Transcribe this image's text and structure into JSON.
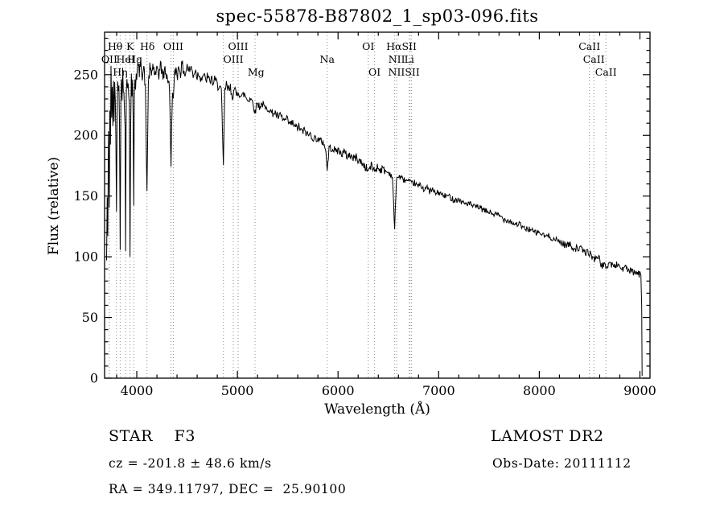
{
  "chart_data": {
    "type": "line",
    "title": "spec-55878-B87802_1_sp03-096.fits",
    "xlabel": "Wavelength (Å)",
    "ylabel": "Flux (relative)",
    "xlim": [
      3680,
      9100
    ],
    "ylim": [
      0,
      285
    ],
    "x_major_step": 1000,
    "x_minor_step": 200,
    "x_major_labels": [
      4000,
      5000,
      6000,
      7000,
      8000,
      9000
    ],
    "y_major_step": 50,
    "y_minor_step": 10,
    "y_major_labels": [
      0,
      50,
      100,
      150,
      200,
      250
    ],
    "grid": false,
    "legend": "none",
    "line_color": "#000000",
    "marker_color": "#8a8a8a",
    "noise": {
      "seed": 42,
      "sample_step": 6,
      "regions": [
        {
          "from": 3680,
          "to": 4000,
          "amp": 10
        },
        {
          "from": 4000,
          "to": 5000,
          "amp": 5
        },
        {
          "from": 5000,
          "to": 6500,
          "amp": 3.5
        },
        {
          "from": 6500,
          "to": 8200,
          "amp": 2.5
        },
        {
          "from": 8200,
          "to": 9030,
          "amp": 3
        }
      ]
    },
    "series": [
      {
        "name": "spectrum",
        "anchors": [
          [
            3700,
            95
          ],
          [
            3706,
            150
          ],
          [
            3712,
            110
          ],
          [
            3718,
            200
          ],
          [
            3724,
            170
          ],
          [
            3727,
            140
          ],
          [
            3732,
            225
          ],
          [
            3738,
            190
          ],
          [
            3744,
            250
          ],
          [
            3750,
            215
          ],
          [
            3756,
            245
          ],
          [
            3762,
            200
          ],
          [
            3768,
            240
          ],
          [
            3774,
            215
          ],
          [
            3780,
            250
          ],
          [
            3786,
            230
          ],
          [
            3792,
            195
          ],
          [
            3798,
            135
          ],
          [
            3804,
            220
          ],
          [
            3810,
            245
          ],
          [
            3816,
            230
          ],
          [
            3822,
            250
          ],
          [
            3828,
            210
          ],
          [
            3835,
            115
          ],
          [
            3842,
            235
          ],
          [
            3848,
            255
          ],
          [
            3854,
            235
          ],
          [
            3860,
            250
          ],
          [
            3866,
            235
          ],
          [
            3872,
            245
          ],
          [
            3878,
            225
          ],
          [
            3884,
            200
          ],
          [
            3889,
            105
          ],
          [
            3896,
            230
          ],
          [
            3902,
            250
          ],
          [
            3908,
            240
          ],
          [
            3914,
            252
          ],
          [
            3920,
            242
          ],
          [
            3926,
            225
          ],
          [
            3933,
            98
          ],
          [
            3940,
            215
          ],
          [
            3946,
            248
          ],
          [
            3952,
            238
          ],
          [
            3958,
            250
          ],
          [
            3964,
            210
          ],
          [
            3970,
            135
          ],
          [
            3976,
            235
          ],
          [
            3982,
            252
          ],
          [
            3988,
            242
          ],
          [
            3994,
            255
          ],
          [
            4000,
            250
          ],
          [
            4010,
            258
          ],
          [
            4025,
            252
          ],
          [
            4040,
            260
          ],
          [
            4055,
            250
          ],
          [
            4070,
            256
          ],
          [
            4085,
            240
          ],
          [
            4101,
            152
          ],
          [
            4115,
            242
          ],
          [
            4130,
            255
          ],
          [
            4145,
            250
          ],
          [
            4160,
            258
          ],
          [
            4175,
            252
          ],
          [
            4190,
            248
          ],
          [
            4205,
            256
          ],
          [
            4220,
            250
          ],
          [
            4235,
            258
          ],
          [
            4250,
            253
          ],
          [
            4265,
            248
          ],
          [
            4280,
            255
          ],
          [
            4295,
            250
          ],
          [
            4310,
            246
          ],
          [
            4325,
            238
          ],
          [
            4340,
            178
          ],
          [
            4355,
            240
          ],
          [
            4363,
            228
          ],
          [
            4375,
            248
          ],
          [
            4390,
            255
          ],
          [
            4405,
            250
          ],
          [
            4420,
            257
          ],
          [
            4435,
            252
          ],
          [
            4450,
            258
          ],
          [
            4465,
            254
          ],
          [
            4480,
            250
          ],
          [
            4500,
            257
          ],
          [
            4520,
            253
          ],
          [
            4540,
            256
          ],
          [
            4560,
            250
          ],
          [
            4580,
            254
          ],
          [
            4600,
            249
          ],
          [
            4620,
            252
          ],
          [
            4640,
            247
          ],
          [
            4660,
            250
          ],
          [
            4680,
            245
          ],
          [
            4700,
            248
          ],
          [
            4720,
            244
          ],
          [
            4740,
            247
          ],
          [
            4760,
            243
          ],
          [
            4780,
            245
          ],
          [
            4800,
            241
          ],
          [
            4820,
            243
          ],
          [
            4840,
            236
          ],
          [
            4861,
            172
          ],
          [
            4875,
            238
          ],
          [
            4890,
            241
          ],
          [
            4910,
            237
          ],
          [
            4930,
            239
          ],
          [
            4950,
            234
          ],
          [
            4970,
            236
          ],
          [
            4990,
            233
          ],
          [
            5010,
            236
          ],
          [
            5040,
            232
          ],
          [
            5070,
            234
          ],
          [
            5100,
            229
          ],
          [
            5130,
            231
          ],
          [
            5160,
            226
          ],
          [
            5175,
            218
          ],
          [
            5195,
            227
          ],
          [
            5220,
            224
          ],
          [
            5250,
            226
          ],
          [
            5280,
            221
          ],
          [
            5310,
            223
          ],
          [
            5340,
            218
          ],
          [
            5370,
            219
          ],
          [
            5400,
            215
          ],
          [
            5430,
            216
          ],
          [
            5460,
            212
          ],
          [
            5490,
            213
          ],
          [
            5520,
            209
          ],
          [
            5550,
            210
          ],
          [
            5580,
            206
          ],
          [
            5610,
            207
          ],
          [
            5640,
            203
          ],
          [
            5670,
            204
          ],
          [
            5700,
            200
          ],
          [
            5730,
            201
          ],
          [
            5760,
            197
          ],
          [
            5790,
            198
          ],
          [
            5820,
            195
          ],
          [
            5850,
            195
          ],
          [
            5875,
            190
          ],
          [
            5892,
            171
          ],
          [
            5910,
            189
          ],
          [
            5940,
            190
          ],
          [
            5970,
            187
          ],
          [
            6000,
            188
          ],
          [
            6030,
            185
          ],
          [
            6060,
            186
          ],
          [
            6090,
            183
          ],
          [
            6120,
            184
          ],
          [
            6150,
            181
          ],
          [
            6180,
            182
          ],
          [
            6210,
            179
          ],
          [
            6240,
            177
          ],
          [
            6270,
            174
          ],
          [
            6300,
            171
          ],
          [
            6330,
            175
          ],
          [
            6363,
            171
          ],
          [
            6390,
            174
          ],
          [
            6420,
            172
          ],
          [
            6450,
            172
          ],
          [
            6480,
            170
          ],
          [
            6510,
            169
          ],
          [
            6540,
            166
          ],
          [
            6563,
            122
          ],
          [
            6580,
            165
          ],
          [
            6610,
            166
          ],
          [
            6640,
            164
          ],
          [
            6670,
            163
          ],
          [
            6700,
            162
          ],
          [
            6730,
            160
          ],
          [
            6760,
            161
          ],
          [
            6790,
            158
          ],
          [
            6820,
            159
          ],
          [
            6850,
            156
          ],
          [
            6880,
            157
          ],
          [
            6910,
            154
          ],
          [
            6940,
            155
          ],
          [
            6970,
            152
          ],
          [
            7000,
            153
          ],
          [
            7050,
            150
          ],
          [
            7100,
            150
          ],
          [
            7150,
            147
          ],
          [
            7200,
            147
          ],
          [
            7250,
            144
          ],
          [
            7300,
            144
          ],
          [
            7350,
            141
          ],
          [
            7400,
            141
          ],
          [
            7450,
            138
          ],
          [
            7500,
            137
          ],
          [
            7550,
            135
          ],
          [
            7600,
            134
          ],
          [
            7650,
            131
          ],
          [
            7700,
            130
          ],
          [
            7750,
            127
          ],
          [
            7800,
            127
          ],
          [
            7850,
            123
          ],
          [
            7900,
            123
          ],
          [
            7950,
            120
          ],
          [
            8000,
            120
          ],
          [
            8050,
            117
          ],
          [
            8100,
            117
          ],
          [
            8150,
            114
          ],
          [
            8200,
            113
          ],
          [
            8250,
            110
          ],
          [
            8300,
            110
          ],
          [
            8350,
            107
          ],
          [
            8400,
            107
          ],
          [
            8450,
            104
          ],
          [
            8500,
            103
          ],
          [
            8542,
            98
          ],
          [
            8580,
            101
          ],
          [
            8620,
            93
          ],
          [
            8662,
            92
          ],
          [
            8700,
            95
          ],
          [
            8740,
            92
          ],
          [
            8780,
            94
          ],
          [
            8820,
            90
          ],
          [
            8860,
            91
          ],
          [
            8900,
            88
          ],
          [
            8940,
            87
          ],
          [
            8980,
            86
          ],
          [
            9010,
            85
          ],
          [
            9018,
            60
          ],
          [
            9022,
            2
          ]
        ]
      }
    ],
    "line_marks": [
      3727,
      3798,
      3835,
      3889,
      3933,
      3970,
      4101,
      4340,
      4363,
      4861,
      4959,
      5007,
      5175,
      5892,
      6300,
      6363,
      6563,
      6583,
      6708,
      6716,
      6731,
      8498,
      8542,
      8662
    ],
    "spectral_labels": [
      {
        "text": "Hθ",
        "wavelength": 3786,
        "row": 1
      },
      {
        "text": "K",
        "wavelength": 3933,
        "row": 1
      },
      {
        "text": "Hδ",
        "wavelength": 4105,
        "row": 1
      },
      {
        "text": "OIII",
        "wavelength": 4363,
        "row": 1
      },
      {
        "text": "OIII",
        "wavelength": 5007,
        "row": 1
      },
      {
        "text": "OI",
        "wavelength": 6300,
        "row": 1
      },
      {
        "text": "HαSII",
        "wavelength": 6630,
        "row": 1
      },
      {
        "text": "CaII",
        "wavelength": 8498,
        "row": 1
      },
      {
        "text": "OII",
        "wavelength": 3727,
        "row": 2
      },
      {
        "text": "HeI",
        "wavelength": 3889,
        "row": 2
      },
      {
        "text": "Hε",
        "wavelength": 3975,
        "row": 2
      },
      {
        "text": "OIII",
        "wavelength": 4959,
        "row": 2
      },
      {
        "text": "Na",
        "wavelength": 5892,
        "row": 2
      },
      {
        "text": "NII",
        "wavelength": 6583,
        "row": 2
      },
      {
        "text": "Li",
        "wavelength": 6708,
        "row": 2
      },
      {
        "text": "CaII",
        "wavelength": 8542,
        "row": 2
      },
      {
        "text": "Hη",
        "wavelength": 3835,
        "row": 3
      },
      {
        "text": "Mg",
        "wavelength": 5185,
        "row": 3
      },
      {
        "text": "OI",
        "wavelength": 6363,
        "row": 3
      },
      {
        "text": "NIISII",
        "wavelength": 6655,
        "row": 3
      },
      {
        "text": "CaII",
        "wavelength": 8662,
        "row": 3
      }
    ]
  },
  "annotations": {
    "object_class": "STAR    F3",
    "survey": "LAMOST DR2",
    "cz": "cz = -201.8 ± 48.6 km/s",
    "obs_date": "Obs-Date: 20111112",
    "ra_dec": "RA = 349.11797, DEC =  25.90100"
  }
}
